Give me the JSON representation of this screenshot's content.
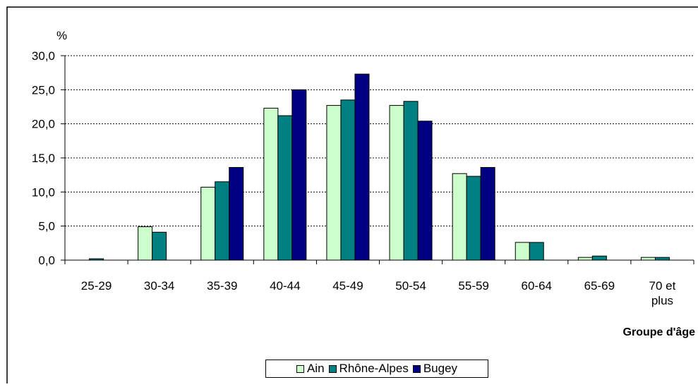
{
  "chart_data": {
    "type": "bar",
    "ylabel": "%",
    "xlabel": "Groupe d'âge",
    "ylim": [
      0,
      30
    ],
    "yticks": [
      0,
      5,
      10,
      15,
      20,
      25,
      30
    ],
    "ytick_labels": [
      "0,0",
      "5,0",
      "10,0",
      "15,0",
      "20,0",
      "25,0",
      "30,0"
    ],
    "grid": "horizontal dotted",
    "legend_position": "bottom",
    "categories": [
      "25-29",
      "30-34",
      "35-39",
      "40-44",
      "45-49",
      "50-54",
      "55-59",
      "60-64",
      "65-69",
      "70 et plus"
    ],
    "series": [
      {
        "name": "Ain",
        "color": "#ccffcc",
        "values": [
          0.0,
          4.9,
          10.7,
          22.3,
          22.7,
          22.7,
          12.7,
          2.6,
          0.4,
          0.4
        ]
      },
      {
        "name": "Rhône-Alpes",
        "color": "#008080",
        "values": [
          0.2,
          4.1,
          11.5,
          21.2,
          23.5,
          23.3,
          12.3,
          2.6,
          0.6,
          0.4
        ]
      },
      {
        "name": "Bugey",
        "color": "#000080",
        "values": [
          0.0,
          0.0,
          13.6,
          25.0,
          27.3,
          20.4,
          13.6,
          0.0,
          0.0,
          0.0
        ]
      }
    ]
  }
}
